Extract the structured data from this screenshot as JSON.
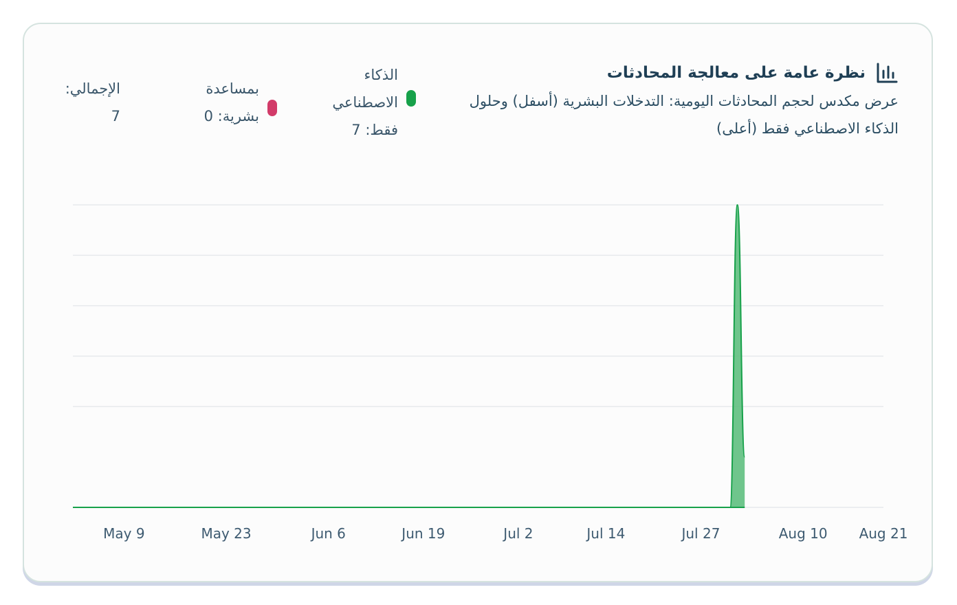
{
  "header": {
    "title": "نظرة عامة على معالجة المحادثات",
    "subtitle": "عرض مكدس لحجم المحادثات اليومية: التدخلات البشرية (أسفل) وحلول الذكاء الاصطناعي فقط (أعلى)",
    "icon": "bar-chart-icon"
  },
  "legend": {
    "ai_only": "الذكاء الاصطناعي فقط: 7",
    "human_assisted": "بمساعدة بشرية: 0",
    "total": "الإجمالي: 7"
  },
  "colors": {
    "ai_only": "#17a14a",
    "ai_fill": "#5fbf80",
    "human_assisted": "#d23b69",
    "grid": "#e6e9ec",
    "axis_text": "#3d5a70"
  },
  "chart_data": {
    "type": "area",
    "stacked": true,
    "x_start": "2025-05-02",
    "x_end": "2025-08-21",
    "x_ticks": [
      "May 9",
      "May 23",
      "Jun 6",
      "Jun 19",
      "Jul 2",
      "Jul 14",
      "Jul 27",
      "Aug 10",
      "Aug 21"
    ],
    "x_tick_dates": [
      "2025-05-09",
      "2025-05-23",
      "2025-06-06",
      "2025-06-19",
      "2025-07-02",
      "2025-07-14",
      "2025-07-27",
      "2025-08-10",
      "2025-08-21"
    ],
    "ylim": [
      0,
      6
    ],
    "y_grid": [
      0,
      2,
      3,
      4,
      5,
      6
    ],
    "series": [
      {
        "key": "human_assisted",
        "points": [
          [
            "2025-05-02",
            0
          ],
          [
            "2025-07-31",
            0
          ],
          [
            "2025-08-01",
            0
          ],
          [
            "2025-08-02",
            0
          ]
        ]
      },
      {
        "key": "ai_only",
        "points": [
          [
            "2025-05-02",
            0
          ],
          [
            "2025-07-31",
            0
          ],
          [
            "2025-08-01",
            6
          ],
          [
            "2025-08-02",
            1
          ]
        ]
      }
    ]
  }
}
